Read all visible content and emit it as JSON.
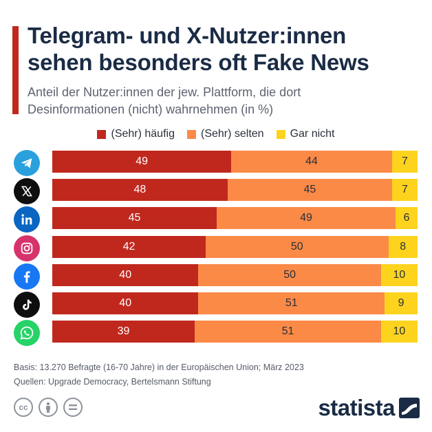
{
  "header": {
    "title_line1": "Telegram- und X-Nutzer:innen",
    "title_line2": "sehen besonders oft Fake News",
    "subtitle_line1": "Anteil der Nutzer:innen der jew. Plattform, die dort",
    "subtitle_line2": "Desinformationen (nicht) wahrnehmen (in %)"
  },
  "legend": {
    "haeufig": "(Sehr) häufig",
    "selten": "(Sehr) selten",
    "garnicht": "Gar nicht"
  },
  "colors": {
    "haeufig": "#c0281e",
    "selten": "#fb8a47",
    "garnicht": "#fdd31e",
    "accent": "#c0281e",
    "title": "#1a2b45"
  },
  "chart_data": {
    "type": "bar",
    "orientation": "horizontal",
    "stacked": true,
    "title": "Telegram- und X-Nutzer:innen sehen besonders oft Fake News",
    "subtitle": "Anteil der Nutzer:innen der jew. Plattform, die dort Desinformationen (nicht) wahrnehmen (in %)",
    "unit": "%",
    "legend_position": "top",
    "categories": [
      "Telegram",
      "X",
      "LinkedIn",
      "Instagram",
      "Facebook",
      "TikTok",
      "WhatsApp"
    ],
    "category_icons": [
      "telegram-icon",
      "x-icon",
      "linkedin-icon",
      "instagram-icon",
      "facebook-icon",
      "tiktok-icon",
      "whatsapp-icon"
    ],
    "series": [
      {
        "name": "(Sehr) häufig",
        "values": [
          49,
          48,
          45,
          42,
          40,
          40,
          39
        ]
      },
      {
        "name": "(Sehr) selten",
        "values": [
          44,
          45,
          49,
          50,
          50,
          51,
          51
        ]
      },
      {
        "name": "Gar nicht",
        "values": [
          7,
          7,
          6,
          8,
          10,
          9,
          10
        ]
      }
    ]
  },
  "footer": {
    "basis": "Basis: 13.270 Befragte (16-70 Jahre) in der Europäischen Union; März 2023",
    "sources": "Quellen: Upgrade Democracy, Bertelsmann Stiftung"
  },
  "brand": {
    "name": "statista"
  }
}
